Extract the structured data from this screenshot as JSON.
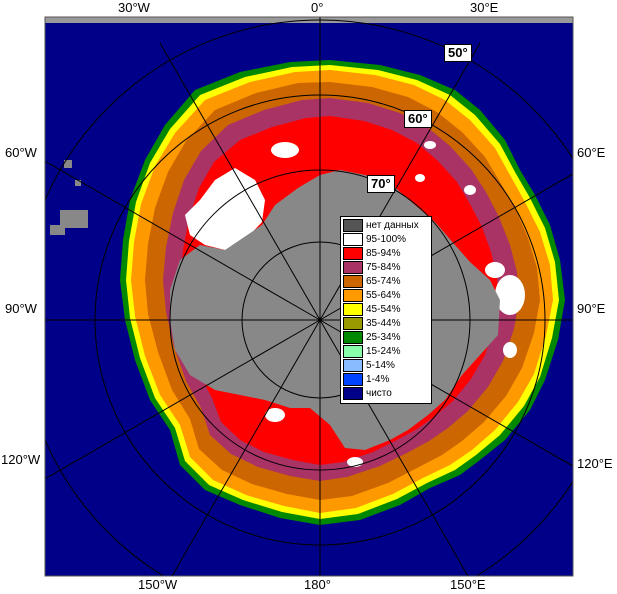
{
  "map": {
    "lon_labels": {
      "top_left": "30°W",
      "top_center": "0°",
      "top_right": "30°E",
      "left_upper": "60°W",
      "left_middle": "90°W",
      "left_lower": "120°W",
      "right_upper": "60°E",
      "right_middle": "90°E",
      "right_lower": "120°E",
      "bottom_left": "150°W",
      "bottom_center": "180°",
      "bottom_right": "150°E"
    },
    "lat_labels": {
      "lat50": "50°",
      "lat60": "60°",
      "lat70": "70°"
    }
  },
  "legend": {
    "items": [
      {
        "label": "нет данных",
        "color": "#555555"
      },
      {
        "label": "95-100%",
        "color": "#ffffff"
      },
      {
        "label": "85-94%",
        "color": "#ff0000"
      },
      {
        "label": "75-84%",
        "color": "#aa3366"
      },
      {
        "label": "65-74%",
        "color": "#cc6600"
      },
      {
        "label": "55-64%",
        "color": "#ff9900"
      },
      {
        "label": "45-54%",
        "color": "#ffff00"
      },
      {
        "label": "35-44%",
        "color": "#999900"
      },
      {
        "label": "25-34%",
        "color": "#008800"
      },
      {
        "label": "15-24%",
        "color": "#88ffaa"
      },
      {
        "label": "5-14%",
        "color": "#88bbff"
      },
      {
        "label": "1-4%",
        "color": "#0044ff"
      },
      {
        "label": "чисто",
        "color": "#000088"
      }
    ]
  },
  "colors": {
    "ocean": "#000088",
    "land": "#888888",
    "frame": "#999999",
    "graticule": "#000000"
  }
}
